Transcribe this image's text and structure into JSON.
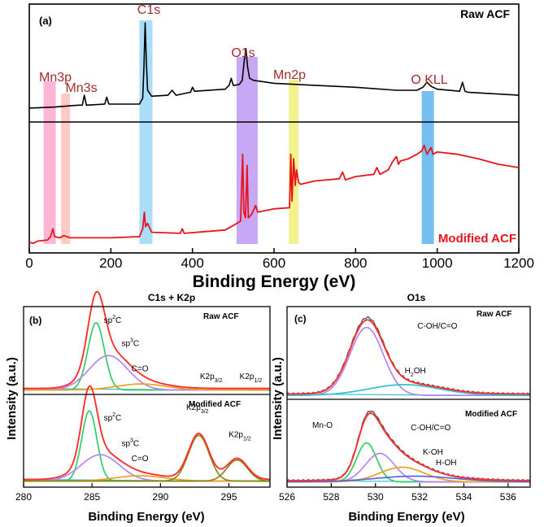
{
  "colors": {
    "raw_line": "#000000",
    "modified_line": "#e8141b",
    "label_dark_red": "#a52a2a",
    "band_mn3p": "#ff9ec8",
    "band_mn3s": "#ffb8b0",
    "band_c1s": "#8ed3f5",
    "band_o1s": "#b58af0",
    "band_mn2p": "#ecec6a",
    "band_okll": "#45a8ee",
    "env_red": "#ff3030",
    "fit_green": "#33cc66",
    "fit_violet": "#b784f0",
    "fit_orange": "#f0a020",
    "fit_olive": "#8a8a10",
    "fit_cyan": "#30c0d0",
    "fit_blue": "#5566dd",
    "exp_gray": "#555555"
  },
  "chart_data": [
    {
      "type": "line",
      "panel": "(a)",
      "title": "",
      "xlabel": "Binding Energy (eV)",
      "ylabel": "",
      "xlim": [
        0,
        1200
      ],
      "xticks": [
        "0",
        "200",
        "400",
        "600",
        "800",
        "1000",
        "1200"
      ],
      "xtick_values": [
        0,
        200,
        400,
        600,
        800,
        1000,
        1200
      ],
      "bands": [
        {
          "label": "Mn3p",
          "x0": 35,
          "x1": 65,
          "color_key": "band_mn3p"
        },
        {
          "label": "Mn3s",
          "x0": 78,
          "x1": 100,
          "color_key": "band_mn3s"
        },
        {
          "label": "C1s",
          "x0": 270,
          "x1": 302,
          "color_key": "band_c1s"
        },
        {
          "label": "O1s",
          "x0": 508,
          "x1": 560,
          "color_key": "band_o1s"
        },
        {
          "label": "Mn2p",
          "x0": 636,
          "x1": 660,
          "color_key": "band_mn2p"
        },
        {
          "label": "O KLL",
          "x0": 962,
          "x1": 992,
          "color_key": "band_okll"
        }
      ],
      "series": [
        {
          "name": "Raw ACF",
          "color_key": "raw_line",
          "x": [
            0,
            60,
            120,
            130,
            135,
            140,
            185,
            190,
            195,
            270,
            278,
            281,
            284,
            287,
            290,
            300,
            340,
            350,
            360,
            395,
            400,
            405,
            480,
            490,
            495,
            500,
            505,
            515,
            522,
            527,
            531,
            535,
            540,
            550,
            600,
            700,
            800,
            900,
            950,
            965,
            975,
            985,
            1000,
            1055,
            1062,
            1068,
            1075,
            1200
          ],
          "y": [
            0.14,
            0.15,
            0.17,
            0.17,
            0.27,
            0.17,
            0.18,
            0.25,
            0.18,
            0.18,
            0.24,
            0.55,
            1.0,
            0.6,
            0.32,
            0.26,
            0.27,
            0.32,
            0.27,
            0.3,
            0.35,
            0.31,
            0.33,
            0.37,
            0.44,
            0.37,
            0.37,
            0.38,
            0.42,
            0.62,
            0.74,
            0.56,
            0.44,
            0.42,
            0.39,
            0.37,
            0.35,
            0.32,
            0.32,
            0.35,
            0.4,
            0.36,
            0.33,
            0.31,
            0.4,
            0.31,
            0.3,
            0.27
          ]
        },
        {
          "name": "Modified ACF",
          "color_key": "modified_line",
          "x": [
            0,
            10,
            20,
            45,
            52,
            58,
            62,
            75,
            85,
            92,
            100,
            200,
            270,
            278,
            282,
            285,
            290,
            300,
            370,
            375,
            380,
            480,
            500,
            518,
            523,
            526,
            530,
            534,
            537,
            545,
            550,
            555,
            560,
            600,
            638,
            641,
            644,
            648,
            652,
            655,
            660,
            665,
            700,
            760,
            768,
            775,
            800,
            845,
            852,
            860,
            880,
            890,
            900,
            905,
            910,
            930,
            950,
            962,
            968,
            975,
            985,
            990,
            1000,
            1050,
            1100,
            1150,
            1200
          ],
          "y": [
            0.03,
            0.02,
            0.04,
            0.05,
            0.08,
            0.15,
            0.08,
            0.07,
            0.09,
            0.08,
            0.07,
            0.07,
            0.08,
            0.15,
            0.3,
            0.17,
            0.2,
            0.12,
            0.11,
            0.15,
            0.11,
            0.14,
            0.18,
            0.22,
            0.82,
            0.3,
            0.25,
            0.72,
            0.25,
            0.28,
            0.32,
            0.36,
            0.3,
            0.33,
            0.34,
            0.82,
            0.4,
            0.78,
            0.54,
            0.68,
            0.57,
            0.55,
            0.58,
            0.6,
            0.66,
            0.59,
            0.62,
            0.64,
            0.7,
            0.64,
            0.68,
            0.75,
            0.8,
            0.73,
            0.76,
            0.78,
            0.82,
            0.85,
            0.9,
            0.82,
            0.88,
            0.82,
            0.84,
            0.82,
            0.78,
            0.73,
            0.7
          ]
        }
      ]
    },
    {
      "type": "line",
      "panel": "(b)",
      "title": "C1s + K2p",
      "xlabel": "Binding Energy (eV)",
      "ylabel": "Intensity (a.u.)",
      "xlim": [
        280,
        298
      ],
      "xticks": [
        "280",
        "285",
        "290",
        "295"
      ],
      "xtick_values": [
        280,
        285,
        290,
        295
      ],
      "subpanels": [
        {
          "name": "Raw ACF",
          "peaks": [
            {
              "name": "sp2C",
              "center": 285.3,
              "height": 0.78,
              "width": 0.6,
              "color_key": "fit_green"
            },
            {
              "name": "sp3C",
              "center": 286.2,
              "height": 0.4,
              "width": 1.4,
              "color_key": "fit_violet"
            },
            {
              "name": "C=O",
              "center": 288.6,
              "height": 0.07,
              "width": 1.8,
              "color_key": "fit_orange"
            }
          ],
          "labels": [
            {
              "text": "sp²C",
              "x": 286.5,
              "y": 0.82
            },
            {
              "text": "sp³C",
              "x": 287.8,
              "y": 0.55
            },
            {
              "text": "C=O",
              "x": 288.5,
              "y": 0.26
            },
            {
              "text": "K2p3/2",
              "x": 293.7,
              "y": 0.17
            },
            {
              "text": "K2p1/2",
              "x": 296.6,
              "y": 0.17
            }
          ]
        },
        {
          "name": "Modified ACF",
          "peaks": [
            {
              "name": "sp2C",
              "center": 284.8,
              "height": 0.8,
              "width": 0.55,
              "color_key": "fit_green"
            },
            {
              "name": "sp3C",
              "center": 285.6,
              "height": 0.3,
              "width": 1.4,
              "color_key": "fit_violet"
            },
            {
              "name": "C=O",
              "center": 288.5,
              "height": 0.06,
              "width": 1.8,
              "color_key": "fit_orange"
            },
            {
              "name": "K2p3/2",
              "center": 292.8,
              "height": 0.52,
              "width": 0.75,
              "color_key": "fit_olive"
            },
            {
              "name": "K2p1/2",
              "center": 295.6,
              "height": 0.24,
              "width": 0.75,
              "color_key": "fit_olive"
            }
          ],
          "labels": [
            {
              "text": "sp²C",
              "x": 286.5,
              "y": 0.73
            },
            {
              "text": "sp³C",
              "x": 287.8,
              "y": 0.44
            },
            {
              "text": "C=O",
              "x": 288.5,
              "y": 0.27
            },
            {
              "text": "K2p3/2",
              "x": 292.7,
              "y": 0.85
            },
            {
              "text": "K2p1/2",
              "x": 295.8,
              "y": 0.54
            }
          ]
        }
      ]
    },
    {
      "type": "line",
      "panel": "(c)",
      "title": "O1s",
      "xlabel": "Binding Energy (eV)",
      "ylabel": "Intensity (a.u.)",
      "xlim": [
        526,
        537
      ],
      "xticks": [
        "526",
        "528",
        "530",
        "532",
        "534",
        "536"
      ],
      "xtick_values": [
        526,
        528,
        530,
        532,
        534,
        536
      ],
      "subpanels": [
        {
          "name": "Raw ACF",
          "peaks": [
            {
              "name": "C-OH/C=O",
              "center": 529.6,
              "height": 0.76,
              "width": 0.75,
              "color_key": "fit_violet"
            },
            {
              "name": "H2OH",
              "center": 531.3,
              "height": 0.12,
              "width": 1.6,
              "color_key": "fit_cyan"
            }
          ],
          "labels": [
            {
              "text": "C-OH/C=O",
              "x": 532.8,
              "y": 0.78
            },
            {
              "text": "H2OH",
              "x": 531.8,
              "y": 0.28
            }
          ]
        },
        {
          "name": "Modified ACF",
          "peaks": [
            {
              "name": "Mn-O",
              "center": 529.6,
              "height": 0.48,
              "width": 0.45,
              "color_key": "fit_green"
            },
            {
              "name": "C-OH/C=O",
              "center": 530.2,
              "height": 0.35,
              "width": 0.65,
              "color_key": "fit_violet"
            },
            {
              "name": "K-OH",
              "center": 531.2,
              "height": 0.18,
              "width": 1.0,
              "color_key": "fit_orange"
            },
            {
              "name": "H-OH",
              "center": 531.8,
              "height": 0.07,
              "width": 1.8,
              "color_key": "fit_blue"
            }
          ],
          "labels": [
            {
              "text": "Mn-O",
              "x": 527.6,
              "y": 0.7
            },
            {
              "text": "C-OH/C=O",
              "x": 532.5,
              "y": 0.67
            },
            {
              "text": "K-OH",
              "x": 532.6,
              "y": 0.37
            },
            {
              "text": "H-OH",
              "x": 533.2,
              "y": 0.24
            }
          ]
        }
      ]
    }
  ],
  "texts": {
    "panel_a": "(a)",
    "raw_label": "Raw ACF",
    "modified_label": "Modified ACF",
    "band_labels": [
      "Mn3p",
      "Mn3s",
      "C1s",
      "O1s",
      "Mn2p",
      "O KLL"
    ],
    "xlabel_a": "Binding Energy (eV)",
    "panel_b": "(b)",
    "title_b": "C1s + K2p",
    "raw_b": "Raw ACF",
    "mod_b": "Modified ACF",
    "xlabel_b": "Binding Energy (eV)",
    "ylabel_b": "Intensity (a.u.)",
    "panel_c": "(c)",
    "title_c": "O1s",
    "raw_c": "Raw ACF",
    "mod_c": "Modified ACF",
    "xlabel_c": "Binding Energy (eV)",
    "ylabel_c": "Intensity (a.u.)"
  }
}
